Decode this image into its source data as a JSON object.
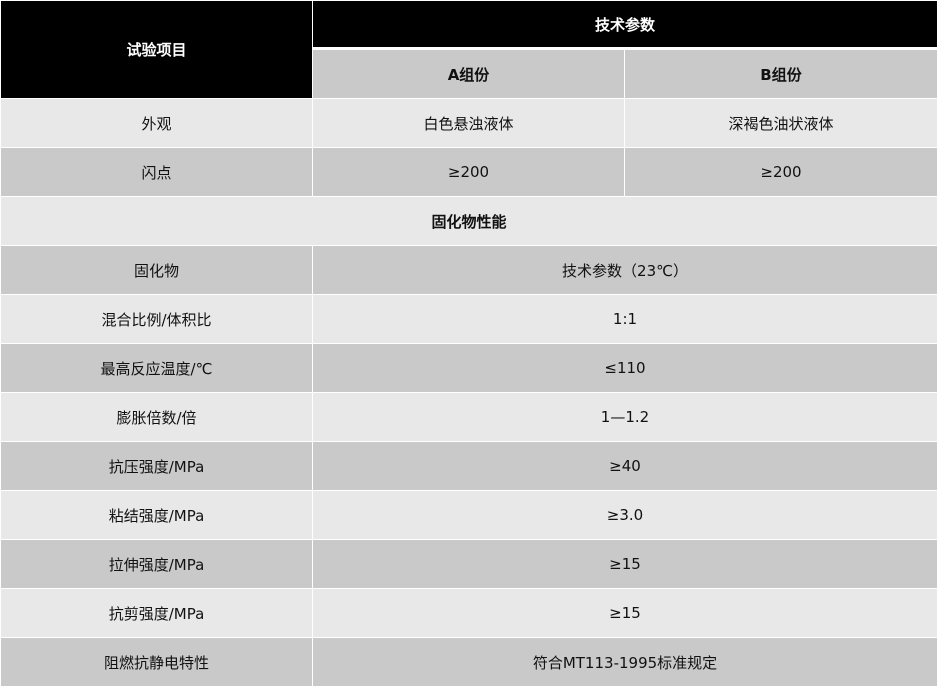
{
  "header": {
    "item_label": "试验项目",
    "params_label": "技术参数",
    "col_a": "A组份",
    "col_b": "B组份"
  },
  "component_rows": [
    {
      "item": "外观",
      "a": "白色悬浊液体",
      "b": "深褐色油状液体"
    },
    {
      "item": "闪点",
      "a": "≥200",
      "b": "≥200"
    }
  ],
  "section_title": "固化物性能",
  "cured_rows": [
    {
      "item": "固化物",
      "value": "技术参数（23℃）"
    },
    {
      "item": "混合比例/体积比",
      "value": "1:1"
    },
    {
      "item": "最高反应温度/℃",
      "value": "≤110"
    },
    {
      "item": "膨胀倍数/倍",
      "value": "1—1.2"
    },
    {
      "item": "抗压强度/MPa",
      "value": "≥40"
    },
    {
      "item": "粘结强度/MPa",
      "value": "≥3.0"
    },
    {
      "item": "拉伸强度/MPa",
      "value": "≥15"
    },
    {
      "item": "抗剪强度/MPa",
      "value": "≥15"
    },
    {
      "item": "阻燃抗静电特性",
      "value": "符合MT113-1995标准规定"
    }
  ]
}
